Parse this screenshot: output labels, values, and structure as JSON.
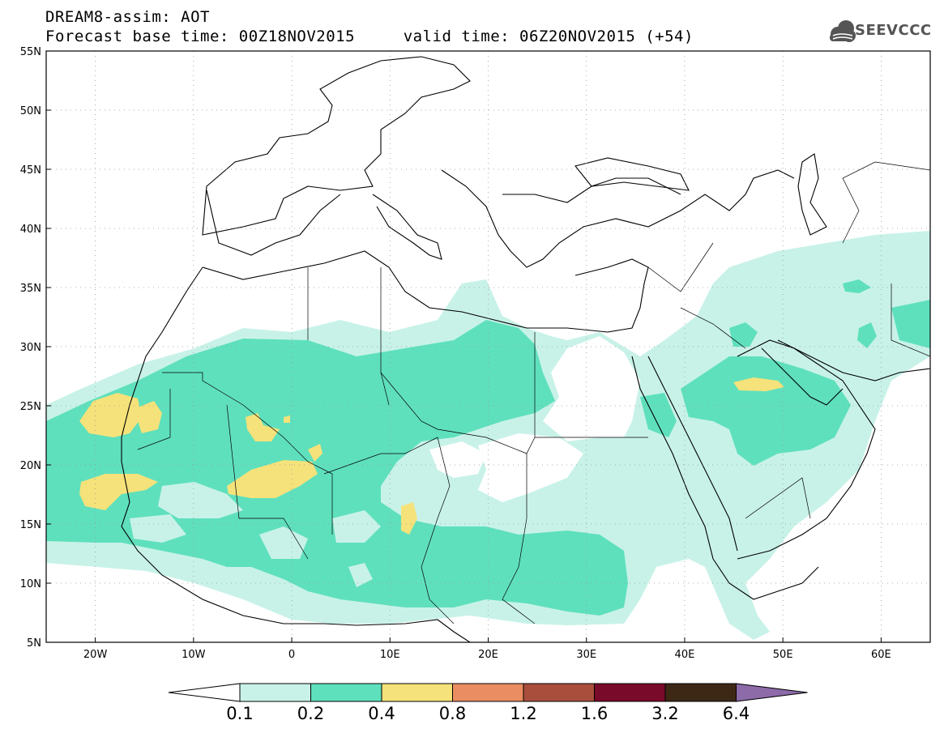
{
  "title": {
    "line1": "DREAM8-assim: AOT",
    "line2": "Forecast base time: 00Z18NOV2015     valid time: 06Z20NOV2015 (+54)"
  },
  "logo": {
    "text": "SEEVCCC",
    "icon": "cloud-icon"
  },
  "map": {
    "lat_labels": [
      "55N",
      "50N",
      "45N",
      "40N",
      "35N",
      "30N",
      "25N",
      "20N",
      "15N",
      "10N",
      "5N"
    ],
    "lon_labels": [
      "20W",
      "10W",
      "0",
      "10E",
      "20E",
      "30E",
      "40E",
      "50E",
      "60E"
    ],
    "lon_range": [
      -25,
      65
    ],
    "lat_range": [
      5,
      55
    ],
    "grid": "dotted",
    "field": "Aerosol Optical Thickness"
  },
  "colorbar": {
    "levels": [
      "0.1",
      "0.2",
      "0.4",
      "0.8",
      "1.2",
      "1.6",
      "3.2",
      "6.4"
    ],
    "colors": [
      "#ffffff",
      "#c8f2e8",
      "#5fe0bd",
      "#f5e27a",
      "#ea8d62",
      "#a94e3c",
      "#7a0a2a",
      "#3d2816",
      "#8d6aa8"
    ]
  },
  "colors": {
    "aot_0_1_0_2": "#c8f2e8",
    "aot_0_2_0_4": "#5fe0bd",
    "aot_0_4_0_8": "#f5e27a"
  }
}
